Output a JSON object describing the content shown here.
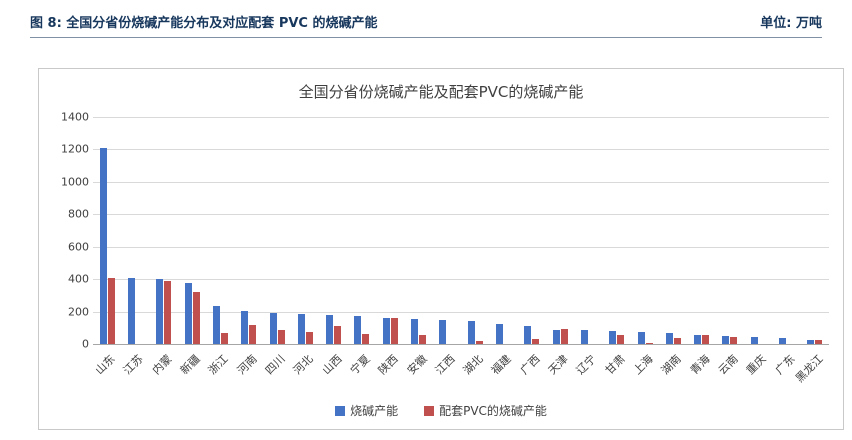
{
  "header": {
    "title": "图 8: 全国分省份烧碱产能分布及对应配套 PVC 的烧碱产能",
    "unit": "单位: 万吨"
  },
  "chart_data": {
    "type": "bar",
    "title": "全国分省份烧碱产能及配套PVC的烧碱产能",
    "categories": [
      "山东",
      "江苏",
      "内蒙",
      "新疆",
      "浙江",
      "河南",
      "四川",
      "河北",
      "山西",
      "宁夏",
      "陕西",
      "安徽",
      "江西",
      "湖北",
      "福建",
      "广西",
      "天津",
      "辽宁",
      "甘肃",
      "上海",
      "湖南",
      "青海",
      "云南",
      "重庆",
      "广东",
      "黑龙江"
    ],
    "series": [
      {
        "name": "烧碱产能",
        "color": "#4472c4",
        "values": [
          1210,
          405,
          400,
          375,
          235,
          205,
          190,
          185,
          180,
          172,
          160,
          152,
          148,
          140,
          122,
          112,
          85,
          85,
          78,
          72,
          65,
          55,
          50,
          42,
          40,
          25
        ]
      },
      {
        "name": "配套PVC的烧碱产能",
        "color": "#c0504d",
        "values": [
          410,
          0,
          390,
          320,
          70,
          120,
          85,
          75,
          110,
          60,
          160,
          55,
          0,
          20,
          0,
          32,
          92,
          0,
          55,
          8,
          35,
          55,
          42,
          0,
          0,
          25
        ]
      }
    ],
    "ylim": [
      0,
      1400
    ],
    "ytick_step": 200,
    "grid": true,
    "legend_position": "bottom"
  }
}
